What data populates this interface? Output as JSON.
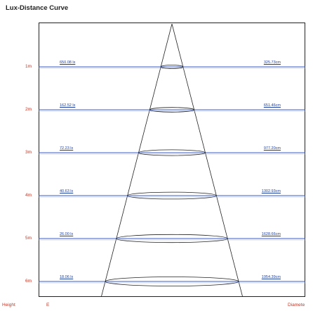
{
  "header": {
    "title": "Lux-Distance Curve"
  },
  "footer": {
    "height_label": "Height",
    "lux_label": "E",
    "diameter_label": "Diamete"
  },
  "colors": {
    "level_line": "#3b5fc4",
    "cone_line": "#222222",
    "label_red": "#c0392b",
    "value_blue": "#1f3fa0"
  },
  "levels": [
    {
      "height": "1m",
      "lux": "650.08 lx",
      "diameter": "325.73cm",
      "diameter_value": 325.73
    },
    {
      "height": "2m",
      "lux": "162.52 lx",
      "diameter": "651.46cm",
      "diameter_value": 651.46
    },
    {
      "height": "3m",
      "lux": "72.23 lx",
      "diameter": "977.20cm",
      "diameter_value": 977.2
    },
    {
      "height": "4m",
      "lux": "40.63 lx",
      "diameter": "1302.93cm",
      "diameter_value": 1302.93
    },
    {
      "height": "5m",
      "lux": "26.00 lx",
      "diameter": "1628.66cm",
      "diameter_value": 1628.66
    },
    {
      "height": "6m",
      "lux": "18.06 lx",
      "diameter": "1954.39cm",
      "diameter_value": 1954.39
    }
  ]
}
